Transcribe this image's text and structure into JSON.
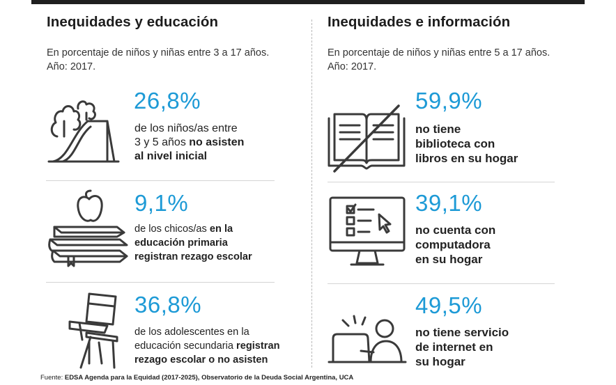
{
  "left": {
    "title": "Inequidades y educación",
    "subtitle_line1": "En porcentaje de niños y niñas entre 3 a 17 años.",
    "subtitle_line2": "Año: 2017.",
    "items": [
      {
        "icon": "playground-slide-icon",
        "pct": "26,8%",
        "line1_plain": "de los niños/as entre",
        "line2_plain": "3 y 5 años ",
        "line2_bold": "no asisten",
        "line3_bold": "al nivel inicial"
      },
      {
        "icon": "books-apple-icon",
        "pct": "9,1%",
        "line1_plain": "de los chicos/as ",
        "line1_bold": "en la",
        "line2_bold": "educación primaria",
        "line3_bold": "registran rezago escolar"
      },
      {
        "icon": "school-desk-chair-icon",
        "pct": "36,8%",
        "line1_plain": "de los adolescentes en la",
        "line2_plain": "educación secundaria ",
        "line2_bold": "registran",
        "line3_bold": "rezago escolar o no asisten"
      }
    ]
  },
  "right": {
    "title": "Inequidades e información",
    "subtitle_line1": "En porcentaje de niños y niñas entre 5 a 17 años.",
    "subtitle_line2": "Año: 2017.",
    "items": [
      {
        "icon": "crossed-book-icon",
        "pct": "59,9%",
        "line1": "no tiene",
        "line2": "biblioteca con",
        "line3": "libros en su hogar"
      },
      {
        "icon": "computer-monitor-icon",
        "pct": "39,1%",
        "line1": "no cuenta con",
        "line2": "computadora",
        "line3": "en su hogar"
      },
      {
        "icon": "person-laptop-icon",
        "pct": "49,5%",
        "line1": "no tiene servicio",
        "line2": "de internet en",
        "line3": "su hogar"
      }
    ]
  },
  "footer": {
    "label": "Fuente:",
    "source": "EDSA Agenda para la Equidad (2017-2025), Observatorio de la Deuda Social Argentina, UCA"
  },
  "colors": {
    "accent": "#1d9ad6",
    "text": "#222222",
    "icon_stroke": "#3a3a3a"
  }
}
